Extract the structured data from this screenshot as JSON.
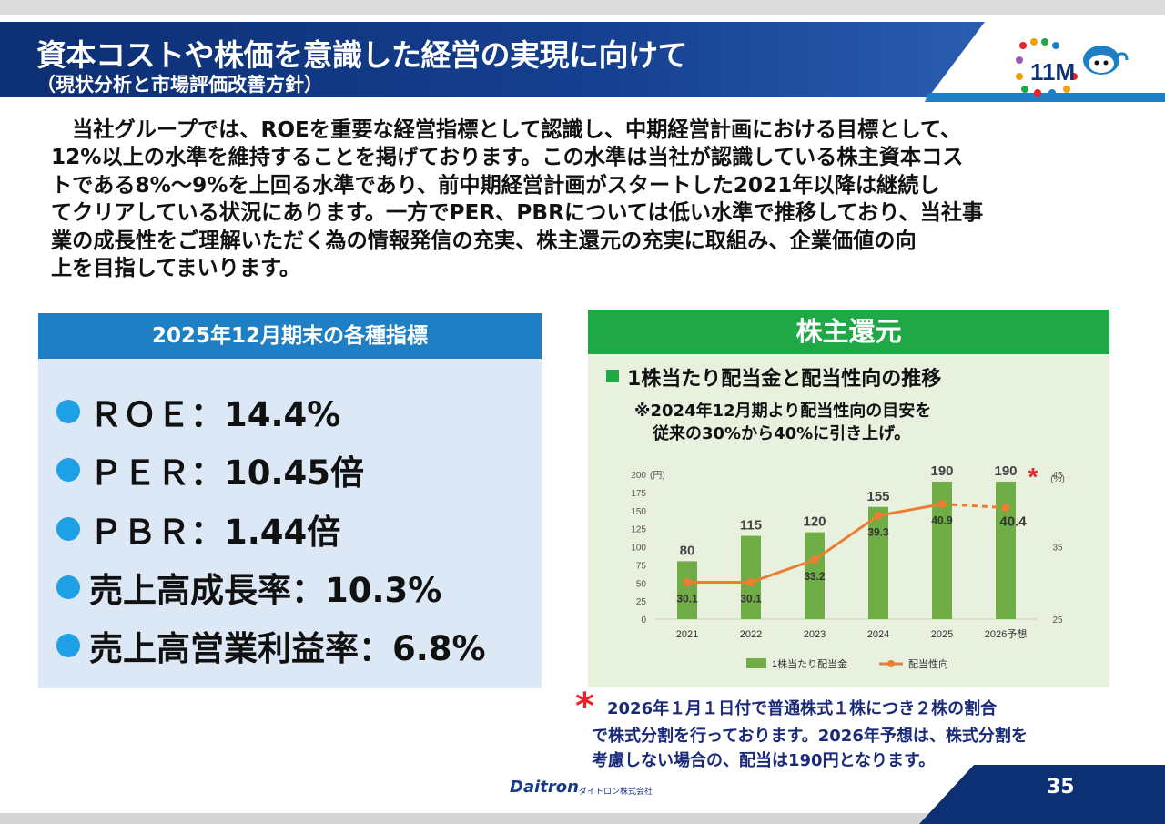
{
  "header": {
    "title": "資本コストや株価を意識した経営の実現に向けて",
    "subtitle": "（現状分析と市場評価改善方針）",
    "logo_text": "11M"
  },
  "intro_lines": [
    "　当社グループでは、ROEを重要な経営指標として認識し、中期経営計画における目標として、",
    "12%以上の水準を維持することを掲げております。この水準は当社が認識している株主資本コス",
    "トである8%～9%を上回る水準であり、前中期経営計画がスタートした2021年以降は継続し",
    "てクリアしている状況にあります。一方でPER、PBRについては低い水準で推移しており、当社事",
    "業の成長性をご理解いただく為の情報発信の充実、株主還元の充実に取組み、企業価値の向",
    "上を目指してまいります。"
  ],
  "kpi": {
    "heading": "2025年12月期末の各種指標",
    "items": [
      "ＲＯＥ：14.4%",
      "ＰＥＲ：10.45倍",
      "ＰＢＲ：1.44倍",
      "売上高成長率：10.3%",
      "売上高営業利益率：6.8%"
    ]
  },
  "shareholder": {
    "heading": "株主還元",
    "chart_title": "1株当たり配当金と配当性向の推移",
    "note_line1": "※2024年12月期より配当性向の目安を",
    "note_line2": "従来の30%から40%に引き上げ。"
  },
  "chart_data": {
    "type": "bar",
    "categories": [
      "2021",
      "2022",
      "2023",
      "2024",
      "2025",
      "2026予想"
    ],
    "series": [
      {
        "name": "1株当たり配当金",
        "values": [
          80,
          115,
          120,
          155,
          190,
          190
        ],
        "color": "#70ad47",
        "axis": "left"
      },
      {
        "name": "配当性向",
        "type": "line",
        "values": [
          30.1,
          30.1,
          33.2,
          39.3,
          40.9,
          40.4
        ],
        "color": "#ed7d31",
        "axis": "right",
        "forecast_from_index": 4
      }
    ],
    "y_left": {
      "label": "(円)",
      "ylim": [
        0,
        200
      ],
      "ticks": [
        0,
        25,
        50,
        75,
        100,
        125,
        150,
        175,
        200
      ]
    },
    "y_right": {
      "label": "(%)",
      "ylim": [
        25,
        45
      ],
      "ticks": [
        25,
        35,
        45
      ]
    },
    "annotation_marker": "*",
    "legend": "bottom",
    "grid": false
  },
  "footnote": {
    "marker": "*",
    "lines": [
      "2026年１月１日付で普通株式１株につき２株の割合",
      "で株式分割を行っております。2026年予想は、株式分割を",
      "考慮しない場合の、配当は190円となります。"
    ]
  },
  "footer": {
    "brand": "Daitron",
    "brand_sub": "ダイトロン株式会社",
    "page_number": "35"
  },
  "colors": {
    "navy": "#0d2f73",
    "blue": "#1e7fc5",
    "green": "#20a847",
    "accent_red": "#e8242a"
  }
}
